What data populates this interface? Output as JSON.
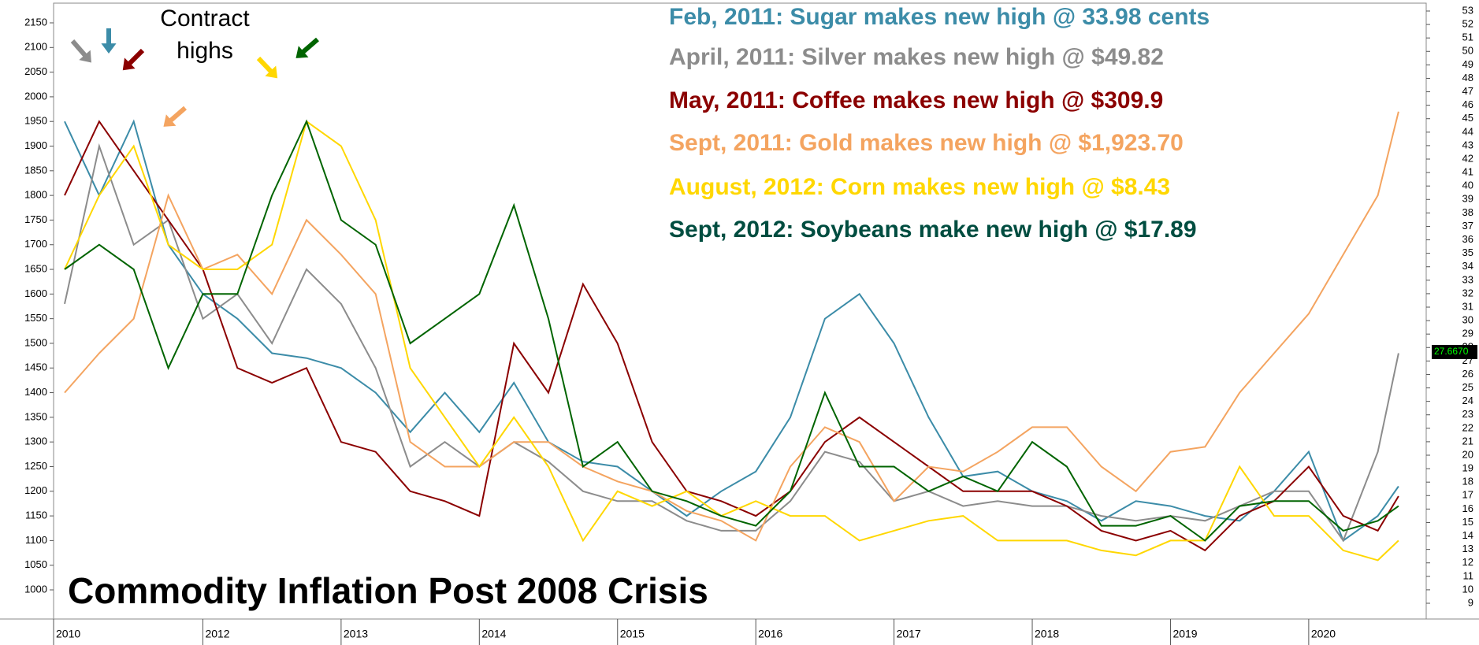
{
  "chart_data": {
    "type": "line",
    "title": "Commodity Inflation Post 2008 Crisis",
    "callout_lines": [
      "Contract",
      "highs"
    ],
    "annotations": [
      {
        "text": "Feb, 2011: Sugar makes new high @ 33.98 cents",
        "color": "#3c8ca8"
      },
      {
        "text": "April, 2011: Silver makes new high @ $49.82",
        "color": "#8c8c8c"
      },
      {
        "text": "May, 2011: Coffee makes new high @ $309.9",
        "color": "#8b0000"
      },
      {
        "text": "Sept, 2011: Gold makes new high @ $1,923.70",
        "color": "#f4a460"
      },
      {
        "text": "August, 2012: Corn makes new high @ $8.43",
        "color": "#ffd700"
      },
      {
        "text": "Sept, 2012: Soybeans make new high @ $17.89",
        "color": "#004d40"
      }
    ],
    "x": [
      2011.0,
      2011.25,
      2011.5,
      2011.75,
      2012.0,
      2012.25,
      2012.5,
      2012.75,
      2013.0,
      2013.25,
      2013.5,
      2013.75,
      2014.0,
      2014.25,
      2014.5,
      2014.75,
      2015.0,
      2015.25,
      2015.5,
      2015.75,
      2016.0,
      2016.25,
      2016.5,
      2016.75,
      2017.0,
      2017.25,
      2017.5,
      2017.75,
      2018.0,
      2018.25,
      2018.5,
      2018.75,
      2019.0,
      2019.25,
      2019.5,
      2019.75,
      2020.0,
      2020.25,
      2020.5,
      2020.65
    ],
    "series": [
      {
        "name": "Sugar",
        "color": "#3c8ca8",
        "values": [
          1950,
          1800,
          1950,
          1700,
          1600,
          1550,
          1480,
          1470,
          1450,
          1400,
          1320,
          1400,
          1320,
          1420,
          1300,
          1260,
          1250,
          1200,
          1150,
          1200,
          1240,
          1350,
          1550,
          1600,
          1500,
          1350,
          1230,
          1240,
          1200,
          1180,
          1140,
          1180,
          1170,
          1150,
          1140,
          1200,
          1280,
          1100,
          1150,
          1210
        ]
      },
      {
        "name": "Silver",
        "color": "#8c8c8c",
        "values": [
          1580,
          1900,
          1700,
          1750,
          1550,
          1600,
          1500,
          1650,
          1580,
          1450,
          1250,
          1300,
          1250,
          1300,
          1260,
          1200,
          1180,
          1180,
          1140,
          1120,
          1120,
          1180,
          1280,
          1260,
          1180,
          1200,
          1170,
          1180,
          1170,
          1170,
          1150,
          1140,
          1150,
          1140,
          1170,
          1200,
          1200,
          1100,
          1280,
          1480
        ]
      },
      {
        "name": "Coffee",
        "color": "#8b0000",
        "values": [
          1800,
          1950,
          1850,
          1750,
          1650,
          1450,
          1420,
          1450,
          1300,
          1280,
          1200,
          1180,
          1150,
          1500,
          1400,
          1620,
          1500,
          1300,
          1200,
          1180,
          1150,
          1200,
          1300,
          1350,
          1300,
          1250,
          1200,
          1200,
          1200,
          1170,
          1120,
          1100,
          1120,
          1080,
          1150,
          1180,
          1250,
          1150,
          1120,
          1190
        ]
      },
      {
        "name": "Gold",
        "color": "#f4a460",
        "values": [
          1400,
          1480,
          1550,
          1800,
          1650,
          1680,
          1600,
          1750,
          1680,
          1600,
          1300,
          1250,
          1250,
          1300,
          1300,
          1250,
          1220,
          1200,
          1160,
          1140,
          1100,
          1250,
          1330,
          1300,
          1180,
          1250,
          1240,
          1280,
          1330,
          1330,
          1250,
          1200,
          1280,
          1290,
          1400,
          1480,
          1560,
          1680,
          1800,
          1970
        ]
      },
      {
        "name": "Corn",
        "color": "#ffd700",
        "values": [
          1650,
          1800,
          1900,
          1700,
          1650,
          1650,
          1700,
          1950,
          1900,
          1750,
          1450,
          1350,
          1250,
          1350,
          1250,
          1100,
          1200,
          1170,
          1200,
          1150,
          1180,
          1150,
          1150,
          1100,
          1120,
          1140,
          1150,
          1100,
          1100,
          1100,
          1080,
          1070,
          1100,
          1100,
          1250,
          1150,
          1150,
          1080,
          1060,
          1100
        ]
      },
      {
        "name": "Soybeans",
        "color": "#006400",
        "values": [
          1650,
          1700,
          1650,
          1450,
          1600,
          1600,
          1800,
          1950,
          1750,
          1700,
          1500,
          1550,
          1600,
          1780,
          1550,
          1250,
          1300,
          1200,
          1180,
          1150,
          1130,
          1200,
          1400,
          1250,
          1250,
          1200,
          1230,
          1200,
          1300,
          1250,
          1130,
          1130,
          1150,
          1100,
          1170,
          1180,
          1180,
          1120,
          1140,
          1170
        ]
      }
    ],
    "xlim": [
      2010.92,
      2020.85
    ],
    "xticks": [
      {
        "value": 2010.92,
        "label": "2010"
      },
      2012,
      2013,
      2014,
      2015,
      2016,
      2017,
      2018,
      2019,
      2020
    ],
    "ylim": [
      1000,
      2150
    ],
    "yticks": [
      1000,
      1050,
      1100,
      1150,
      1200,
      1250,
      1300,
      1350,
      1400,
      1450,
      1500,
      1550,
      1600,
      1650,
      1700,
      1750,
      1800,
      1850,
      1900,
      1950,
      2000,
      2050,
      2100,
      2150
    ],
    "y2lim": [
      9,
      53
    ],
    "y2ticks": [
      9,
      10,
      11,
      12,
      13,
      14,
      15,
      16,
      17,
      18,
      19,
      20,
      21,
      22,
      23,
      24,
      25,
      26,
      27,
      28,
      29,
      30,
      31,
      32,
      33,
      34,
      35,
      36,
      37,
      38,
      39,
      40,
      41,
      42,
      43,
      44,
      45,
      46,
      47,
      48,
      49,
      50,
      51,
      52,
      53
    ],
    "y2_marker": {
      "value": 27.667,
      "label": "27.6670"
    },
    "grid": false
  }
}
